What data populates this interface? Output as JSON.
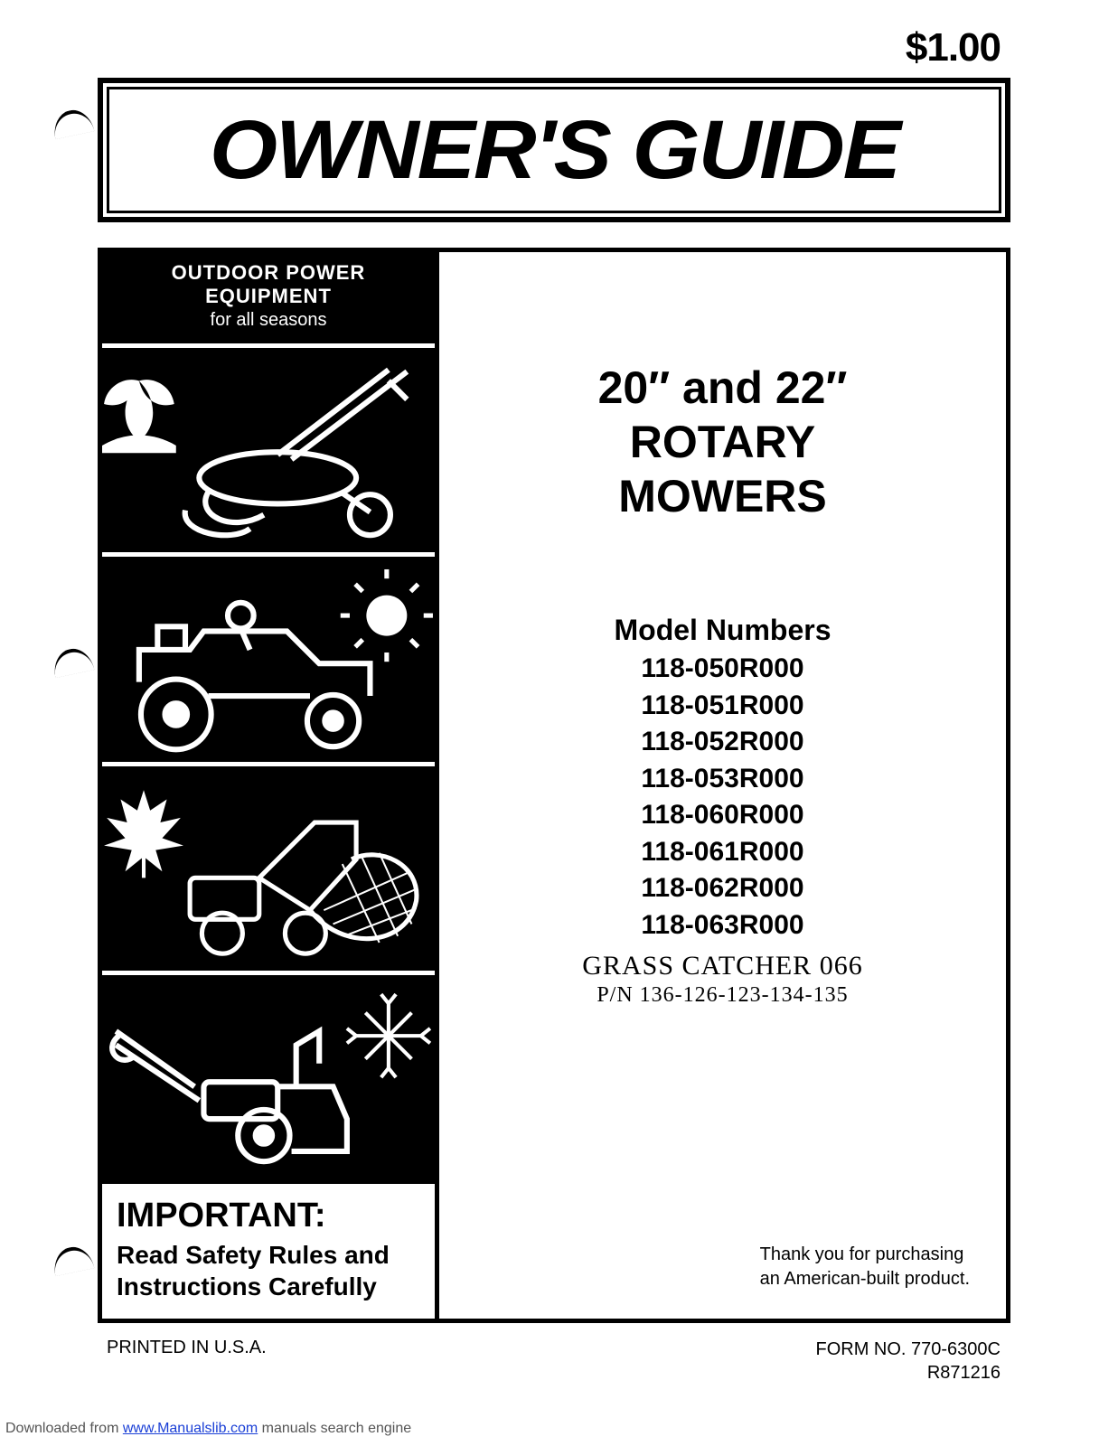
{
  "price": "$1.00",
  "title": "OWNER'S GUIDE",
  "sidebar": {
    "header_line1": "OUTDOOR POWER EQUIPMENT",
    "header_line2": "for all seasons",
    "panels": [
      {
        "name": "spring-tiller-panel",
        "season_icon": "flower",
        "equipment": "tiller"
      },
      {
        "name": "summer-mower-panel",
        "season_icon": "sun",
        "equipment": "riding-mower"
      },
      {
        "name": "autumn-chipper-panel",
        "season_icon": "leaf",
        "equipment": "chipper"
      },
      {
        "name": "winter-blower-panel",
        "season_icon": "snowflake",
        "equipment": "snow-blower"
      }
    ]
  },
  "important": {
    "title": "IMPORTANT:",
    "text": "Read Safety Rules and Instructions Carefully"
  },
  "product": {
    "title_line1": "20″ and 22″",
    "title_line2": "ROTARY",
    "title_line3": "MOWERS",
    "model_heading": "Model Numbers",
    "models": [
      "118-050R000",
      "118-051R000",
      "118-052R000",
      "118-053R000",
      "118-060R000",
      "118-061R000",
      "118-062R000",
      "118-063R000"
    ],
    "handwritten1": "GRASS CATCHER 066",
    "handwritten2": "P/N 136-126-123-134-135",
    "thanks_line1": "Thank you for purchasing",
    "thanks_line2": "an American-built product."
  },
  "footer": {
    "left": "PRINTED IN U.S.A.",
    "right_line1": "FORM NO. 770-6300C",
    "right_line2": "R871216"
  },
  "download": {
    "prefix": "Downloaded from ",
    "link_text": "www.Manualslib.com",
    "suffix": " manuals search engine"
  },
  "colors": {
    "black": "#000000",
    "white": "#ffffff",
    "link": "#1a3fd6",
    "footer_gray": "#555555"
  }
}
